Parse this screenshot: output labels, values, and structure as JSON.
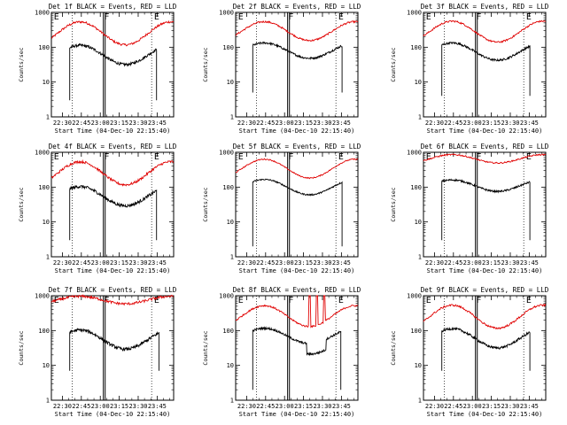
{
  "chart_data": [
    {
      "type": "line",
      "title": "Det 1f BLACK = Events, RED = LLD",
      "ylabel": "Counts/sec",
      "xlabel": "Start Time (04-Dec-10 22:15:40)",
      "x_ticks": [
        "22:30",
        "22:45",
        "23:00",
        "23:15",
        "23:30",
        "23:45"
      ],
      "y_ticks": [
        "1",
        "10",
        "100",
        "1000"
      ],
      "yscale": "log",
      "ylim": [
        1,
        1000
      ],
      "markers": [
        "E",
        "F",
        "E"
      ],
      "lld_base": 250,
      "lld_amp": 0.55,
      "lld_shape": "wave",
      "events_base": 60,
      "events_amp": 0.5,
      "events_start": 0.15,
      "events_end": 0.86,
      "events_low": 3,
      "noise": 0.08,
      "gap": null,
      "series": [
        {
          "name": "Events",
          "color": "#000000"
        },
        {
          "name": "LLD",
          "color": "#e00000"
        }
      ]
    },
    {
      "type": "line",
      "title": "Det 2f BLACK = Events, RED = LLD",
      "ylabel": "Counts/sec",
      "xlabel": "Start Time (04-Dec-10 22:15:40)",
      "x_ticks": [
        "22:30",
        "22:45",
        "23:00",
        "23:15",
        "23:30",
        "23:45"
      ],
      "y_ticks": [
        "1",
        "10",
        "100",
        "1000"
      ],
      "yscale": "log",
      "ylim": [
        1,
        1000
      ],
      "markers": [
        "E",
        "F",
        "E"
      ],
      "lld_base": 290,
      "lld_amp": 0.45,
      "lld_shape": "wave",
      "events_base": 80,
      "events_amp": 0.4,
      "events_start": 0.14,
      "events_end": 0.87,
      "events_low": 5,
      "noise": 0.06,
      "gap": null,
      "series": [
        {
          "name": "Events",
          "color": "#000000"
        },
        {
          "name": "LLD",
          "color": "#e00000"
        }
      ]
    },
    {
      "type": "line",
      "title": "Det 3f BLACK = Events, RED = LLD",
      "ylabel": "Counts/sec",
      "xlabel": "Start Time (04-Dec-10 22:15:40)",
      "x_ticks": [
        "22:30",
        "22:45",
        "23:00",
        "23:15",
        "23:30",
        "23:45"
      ],
      "y_ticks": [
        "1",
        "10",
        "100",
        "1000"
      ],
      "yscale": "log",
      "ylim": [
        1,
        1000
      ],
      "markers": [
        "E",
        "F",
        "E"
      ],
      "lld_base": 280,
      "lld_amp": 0.5,
      "lld_shape": "wave",
      "events_base": 75,
      "events_amp": 0.45,
      "events_start": 0.15,
      "events_end": 0.87,
      "events_low": 4,
      "noise": 0.06,
      "gap": null,
      "series": [
        {
          "name": "Events",
          "color": "#000000"
        },
        {
          "name": "LLD",
          "color": "#e00000"
        }
      ]
    },
    {
      "type": "line",
      "title": "Det 4f BLACK = Events, RED = LLD",
      "ylabel": "Counts/sec",
      "xlabel": "Start Time (04-Dec-10 22:15:40)",
      "x_ticks": [
        "22:30",
        "22:45",
        "23:00",
        "23:15",
        "23:30",
        "23:45"
      ],
      "y_ticks": [
        "1",
        "10",
        "100",
        "1000"
      ],
      "yscale": "log",
      "ylim": [
        1,
        1000
      ],
      "markers": [
        "E",
        "F",
        "E"
      ],
      "lld_base": 250,
      "lld_amp": 0.55,
      "lld_shape": "wave",
      "events_base": 55,
      "events_amp": 0.5,
      "events_start": 0.15,
      "events_end": 0.86,
      "events_low": 3,
      "noise": 0.09,
      "gap": null,
      "series": [
        {
          "name": "Events",
          "color": "#000000"
        },
        {
          "name": "LLD",
          "color": "#e00000"
        }
      ]
    },
    {
      "type": "line",
      "title": "Det 5f BLACK = Events, RED = LLD",
      "ylabel": "Counts/sec",
      "xlabel": "Start Time (04-Dec-10 22:15:40)",
      "x_ticks": [
        "22:30",
        "22:45",
        "23:00",
        "23:15",
        "23:30",
        "23:45"
      ],
      "y_ticks": [
        "1",
        "10",
        "100",
        "1000"
      ],
      "yscale": "log",
      "ylim": [
        1,
        1000
      ],
      "markers": [
        "E",
        "F",
        "E"
      ],
      "lld_base": 340,
      "lld_amp": 0.45,
      "lld_shape": "wave",
      "events_base": 100,
      "events_amp": 0.4,
      "events_start": 0.14,
      "events_end": 0.87,
      "events_low": 2,
      "noise": 0.04,
      "gap": null,
      "series": [
        {
          "name": "Events",
          "color": "#000000"
        },
        {
          "name": "LLD",
          "color": "#e00000"
        }
      ]
    },
    {
      "type": "line",
      "title": "Det 6f BLACK = Events, RED = LLD",
      "ylabel": "Counts/sec",
      "xlabel": "Start Time (04-Dec-10 22:15:40)",
      "x_ticks": [
        "22:30",
        "22:45",
        "23:00",
        "23:15",
        "23:30",
        "23:45"
      ],
      "y_ticks": [
        "1",
        "10",
        "100",
        "1000"
      ],
      "yscale": "log",
      "ylim": [
        1,
        1000
      ],
      "markers": [
        "E",
        "F",
        "E"
      ],
      "lld_base": 650,
      "lld_amp": 0.2,
      "lld_shape": "wave",
      "events_base": 110,
      "events_amp": 0.3,
      "events_start": 0.15,
      "events_end": 0.87,
      "events_low": 3,
      "noise": 0.05,
      "gap": null,
      "series": [
        {
          "name": "Events",
          "color": "#000000"
        },
        {
          "name": "LLD",
          "color": "#e00000"
        }
      ]
    },
    {
      "type": "line",
      "title": "Det 7f BLACK = Events, RED = LLD",
      "ylabel": "Counts/sec",
      "xlabel": "Start Time (04-Dec-10 22:15:40)",
      "x_ticks": [
        "22:30",
        "22:45",
        "23:00",
        "23:15",
        "23:30",
        "23:45"
      ],
      "y_ticks": [
        "1",
        "10",
        "100",
        "1000"
      ],
      "yscale": "log",
      "ylim": [
        1,
        1000
      ],
      "markers": [
        "E",
        "F",
        "E"
      ],
      "lld_base": 750,
      "lld_amp": 0.18,
      "lld_shape": "wave",
      "events_base": 55,
      "events_amp": 0.5,
      "events_start": 0.15,
      "events_end": 0.88,
      "events_low": 7,
      "noise": 0.09,
      "gap": null,
      "series": [
        {
          "name": "Events",
          "color": "#000000"
        },
        {
          "name": "LLD",
          "color": "#e00000"
        }
      ]
    },
    {
      "type": "line",
      "title": "Det 8f BLACK = Events, RED = LLD",
      "ylabel": "Counts/sec",
      "xlabel": "Start Time (04-Dec-10 22:15:40)",
      "x_ticks": [
        "22:30",
        "22:45",
        "23:00",
        "23:15",
        "23:30",
        "23:45"
      ],
      "y_ticks": [
        "1",
        "10",
        "100",
        "1000"
      ],
      "yscale": "log",
      "ylim": [
        1,
        1000
      ],
      "markers": [
        "E",
        "F",
        "E"
      ],
      "lld_base": 260,
      "lld_amp": 0.5,
      "lld_shape": "wave",
      "events_base": 70,
      "events_amp": 0.4,
      "events_start": 0.14,
      "events_end": 0.86,
      "events_low": 2,
      "noise": 0.06,
      "gap": [
        0.58,
        0.74
      ],
      "series": [
        {
          "name": "Events",
          "color": "#000000"
        },
        {
          "name": "LLD",
          "color": "#e00000"
        }
      ]
    },
    {
      "type": "line",
      "title": "Det 9f BLACK = Events, RED = LLD",
      "ylabel": "Counts/sec",
      "xlabel": "Start Time (04-Dec-10 22:15:40)",
      "x_ticks": [
        "22:30",
        "22:45",
        "23:00",
        "23:15",
        "23:30",
        "23:45"
      ],
      "y_ticks": [
        "1",
        "10",
        "100",
        "1000"
      ],
      "yscale": "log",
      "ylim": [
        1,
        1000
      ],
      "markers": [
        "E",
        "F",
        "E"
      ],
      "lld_base": 250,
      "lld_amp": 0.55,
      "lld_shape": "wave",
      "events_base": 60,
      "events_amp": 0.5,
      "events_start": 0.15,
      "events_end": 0.87,
      "events_low": 7,
      "noise": 0.07,
      "gap": null,
      "series": [
        {
          "name": "Events",
          "color": "#000000"
        },
        {
          "name": "LLD",
          "color": "#e00000"
        }
      ]
    }
  ]
}
